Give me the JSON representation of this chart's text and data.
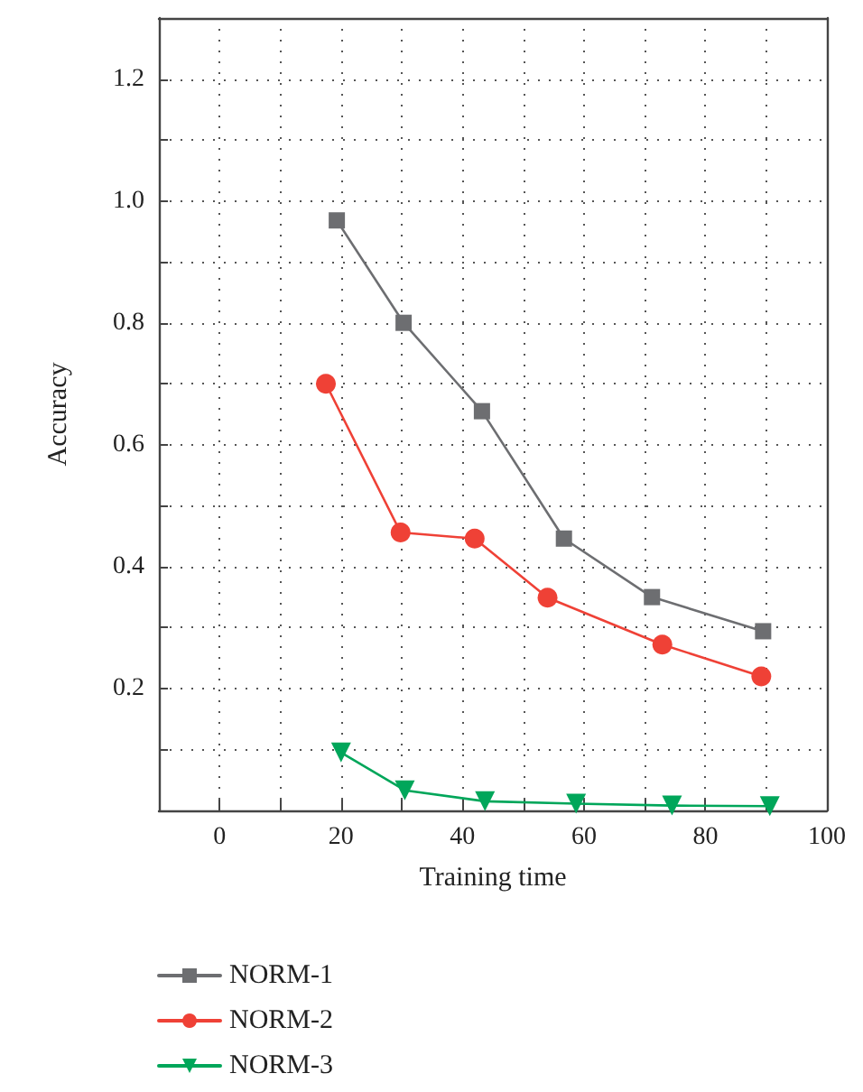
{
  "chart_data": {
    "type": "line",
    "xlabel": "Training time",
    "ylabel": "Accuracy",
    "xlim": [
      -10,
      100
    ],
    "xticks": [
      0,
      {
        "value": 10,
        "label": null
      },
      20,
      {
        "value": 30,
        "label": null
      },
      40,
      {
        "value": 50,
        "label": null
      },
      60,
      {
        "value": 70,
        "label": null
      },
      80,
      {
        "value": 90,
        "label": null
      },
      100
    ],
    "ylim": [
      0,
      1.3
    ],
    "yticks": [
      {
        "value": 0.1,
        "label": null
      },
      0.2,
      {
        "value": 0.3,
        "label": null
      },
      0.4,
      {
        "value": 0.5,
        "label": null
      },
      0.6,
      {
        "value": 0.7,
        "label": null
      },
      0.8,
      {
        "value": 0.9,
        "label": null
      },
      {
        "value": 1.0,
        "label": "1.0"
      },
      {
        "value": 1.1,
        "label": null
      },
      1.2
    ],
    "grid": true,
    "legend": "bottom left",
    "line_style": "solid",
    "series": [
      {
        "name": "NORM-1",
        "color": "#6d6e71",
        "marker": "square",
        "x": [
          19.3,
          30.3,
          43.2,
          56.7,
          71.2,
          89.5
        ],
        "values": [
          0.968,
          0.8,
          0.655,
          0.446,
          0.35,
          0.294
        ]
      },
      {
        "name": "NORM-2",
        "color": "#ef4136",
        "marker": "circle",
        "x": [
          17.5,
          29.8,
          42,
          54,
          72.9,
          89.2
        ],
        "values": [
          0.7,
          0.456,
          0.446,
          0.349,
          0.272,
          0.22
        ]
      },
      {
        "name": "NORM-3",
        "color": "#00a65a",
        "marker": "triangle",
        "x": [
          20,
          30.5,
          43.7,
          58.7,
          74.5,
          90.6
        ],
        "values": [
          0.095,
          0.033,
          0.015,
          0.011,
          0.008,
          0.007
        ]
      }
    ]
  }
}
